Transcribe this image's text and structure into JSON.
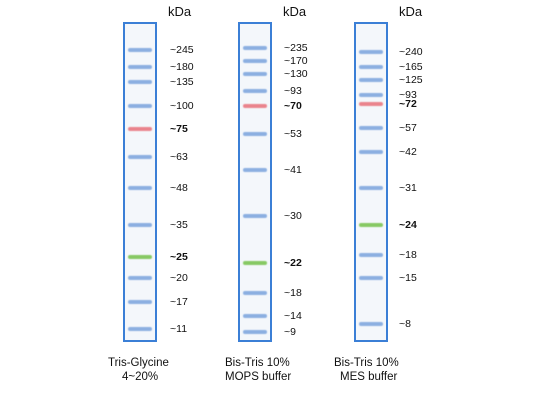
{
  "panels": [
    {
      "unit": "kDa",
      "caption_line1": "Tris-Glycine",
      "caption_line2": "4~20%",
      "markers": [
        {
          "label": "~245",
          "kda": 245,
          "color": "blue",
          "bold": false
        },
        {
          "label": "~180",
          "kda": 180,
          "color": "blue",
          "bold": false
        },
        {
          "label": "~135",
          "kda": 135,
          "color": "blue",
          "bold": false
        },
        {
          "label": "~100",
          "kda": 100,
          "color": "blue",
          "bold": false
        },
        {
          "label": "~75",
          "kda": 75,
          "color": "red",
          "bold": true
        },
        {
          "label": "~63",
          "kda": 63,
          "color": "blue",
          "bold": false
        },
        {
          "label": "~48",
          "kda": 48,
          "color": "blue",
          "bold": false
        },
        {
          "label": "~35",
          "kda": 35,
          "color": "blue",
          "bold": false
        },
        {
          "label": "~25",
          "kda": 25,
          "color": "green",
          "bold": true
        },
        {
          "label": "~20",
          "kda": 20,
          "color": "blue",
          "bold": false
        },
        {
          "label": "~17",
          "kda": 17,
          "color": "blue",
          "bold": false
        },
        {
          "label": "~11",
          "kda": 11,
          "color": "blue",
          "bold": false
        }
      ]
    },
    {
      "unit": "kDa",
      "caption_line1": "Bis-Tris 10%",
      "caption_line2": "MOPS buffer",
      "markers": [
        {
          "label": "~235",
          "kda": 235,
          "color": "blue",
          "bold": false
        },
        {
          "label": "~170",
          "kda": 170,
          "color": "blue",
          "bold": false
        },
        {
          "label": "~130",
          "kda": 130,
          "color": "blue",
          "bold": false
        },
        {
          "label": "~93",
          "kda": 93,
          "color": "blue",
          "bold": false
        },
        {
          "label": "~70",
          "kda": 70,
          "color": "red",
          "bold": true
        },
        {
          "label": "~53",
          "kda": 53,
          "color": "blue",
          "bold": false
        },
        {
          "label": "~41",
          "kda": 41,
          "color": "blue",
          "bold": false
        },
        {
          "label": "~30",
          "kda": 30,
          "color": "blue",
          "bold": false
        },
        {
          "label": "~22",
          "kda": 22,
          "color": "green",
          "bold": true
        },
        {
          "label": "~18",
          "kda": 18,
          "color": "blue",
          "bold": false
        },
        {
          "label": "~14",
          "kda": 14,
          "color": "blue",
          "bold": false
        },
        {
          "label": "~9",
          "kda": 9,
          "color": "blue",
          "bold": false
        }
      ]
    },
    {
      "unit": "kDa",
      "caption_line1": "Bis-Tris 10%",
      "caption_line2": "MES buffer",
      "markers": [
        {
          "label": "~240",
          "kda": 240,
          "color": "blue",
          "bold": false
        },
        {
          "label": "~165",
          "kda": 165,
          "color": "blue",
          "bold": false
        },
        {
          "label": "~125",
          "kda": 125,
          "color": "blue",
          "bold": false
        },
        {
          "label": "~93",
          "kda": 93,
          "color": "blue",
          "bold": false
        },
        {
          "label": "~72",
          "kda": 72,
          "color": "red",
          "bold": true
        },
        {
          "label": "~57",
          "kda": 57,
          "color": "blue",
          "bold": false
        },
        {
          "label": "~42",
          "kda": 42,
          "color": "blue",
          "bold": false
        },
        {
          "label": "~31",
          "kda": 31,
          "color": "blue",
          "bold": false
        },
        {
          "label": "~24",
          "kda": 24,
          "color": "green",
          "bold": true
        },
        {
          "label": "~18",
          "kda": 18,
          "color": "blue",
          "bold": false
        },
        {
          "label": "~15",
          "kda": 15,
          "color": "blue",
          "bold": false
        },
        {
          "label": "~8",
          "kda": 8,
          "color": "blue",
          "bold": false
        }
      ]
    }
  ],
  "colors": {
    "lane_border": "#3b7fd6",
    "blue_band": "#7aa3dd",
    "red_band": "#e9707a",
    "green_band": "#74c24a"
  }
}
